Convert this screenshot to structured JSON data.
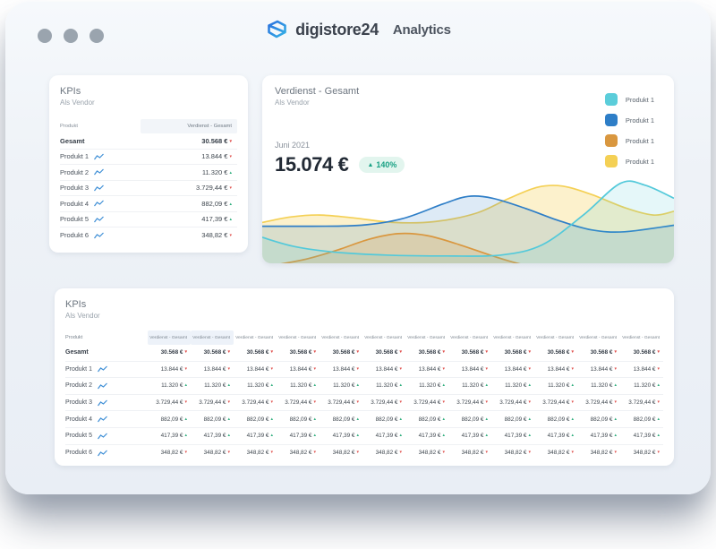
{
  "window": {
    "brand": "digistore24",
    "app": "Analytics",
    "controls": [
      "window-dot",
      "window-dot",
      "window-dot"
    ]
  },
  "kpi_panel": {
    "title": "KPIs",
    "subtitle": "Als Vendor",
    "col_product": "Produkt",
    "col_value": "Verdienst - Gesamt"
  },
  "kpi_rows": [
    {
      "name": "Gesamt",
      "value": "30.568 €",
      "trend": "down",
      "bold": true,
      "spark": false
    },
    {
      "name": "Produkt 1",
      "value": "13.844 €",
      "trend": "down",
      "bold": false,
      "spark": true
    },
    {
      "name": "Produkt 2",
      "value": "11.320 €",
      "trend": "up",
      "bold": false,
      "spark": true
    },
    {
      "name": "Produkt 3",
      "value": "3.729,44 €",
      "trend": "down",
      "bold": false,
      "spark": true
    },
    {
      "name": "Produkt 4",
      "value": "882,09 €",
      "trend": "up",
      "bold": false,
      "spark": true
    },
    {
      "name": "Produkt 5",
      "value": "417,39 €",
      "trend": "up",
      "bold": false,
      "spark": true
    },
    {
      "name": "Produkt 6",
      "value": "348,82 €",
      "trend": "down",
      "bold": false,
      "spark": true
    }
  ],
  "detail_panel": {
    "title": "Verdienst - Gesamt",
    "subtitle": "Als Vendor",
    "period": "Juni 2021",
    "amount": "15.074 €",
    "change": "140%",
    "change_direction": "up",
    "badge_color": "#19a184",
    "legend": [
      {
        "label": "Produkt 1",
        "color": "#5bcdda"
      },
      {
        "label": "Produkt 1",
        "color": "#2e7ec7"
      },
      {
        "label": "Produkt 1",
        "color": "#d9973f"
      },
      {
        "label": "Produkt 1",
        "color": "#f4d055"
      }
    ]
  },
  "chart_data": {
    "type": "area",
    "title": "Verdienst - Gesamt",
    "axes_visible": false,
    "grid": false,
    "legend_position": "top-right",
    "note_units": "relative earnings over time, x 0-100 = Zeitachse, y 0-100 = Höhe",
    "series": [
      {
        "name": "Produkt 1",
        "color": "#f4d055",
        "fill_opacity": 0.3,
        "points": [
          [
            0,
            40
          ],
          [
            7,
            46
          ],
          [
            14,
            48
          ],
          [
            22,
            45
          ],
          [
            32,
            40
          ],
          [
            42,
            41
          ],
          [
            52,
            50
          ],
          [
            60,
            66
          ],
          [
            67,
            78
          ],
          [
            73,
            79
          ],
          [
            80,
            70
          ],
          [
            88,
            56
          ],
          [
            95,
            48
          ],
          [
            100,
            52
          ]
        ]
      },
      {
        "name": "Produkt 1",
        "color": "#2e7ec7",
        "fill_opacity": 0.16,
        "points": [
          [
            0,
            36
          ],
          [
            12,
            36
          ],
          [
            24,
            37
          ],
          [
            34,
            44
          ],
          [
            44,
            60
          ],
          [
            50,
            68
          ],
          [
            56,
            66
          ],
          [
            64,
            55
          ],
          [
            72,
            42
          ],
          [
            80,
            32
          ],
          [
            88,
            30
          ],
          [
            100,
            37
          ]
        ]
      },
      {
        "name": "Produkt 1",
        "color": "#d9973f",
        "fill_opacity": 0.2,
        "points": [
          [
            0,
            -8
          ],
          [
            10,
            0
          ],
          [
            18,
            10
          ],
          [
            26,
            22
          ],
          [
            33,
            28
          ],
          [
            40,
            26
          ],
          [
            48,
            16
          ],
          [
            56,
            4
          ],
          [
            64,
            -6
          ],
          [
            75,
            -14
          ]
        ]
      },
      {
        "name": "Produkt 1",
        "color": "#53c9da",
        "fill_opacity": 0.15,
        "points": [
          [
            0,
            24
          ],
          [
            8,
            14
          ],
          [
            18,
            8
          ],
          [
            30,
            5
          ],
          [
            45,
            4
          ],
          [
            58,
            5
          ],
          [
            68,
            16
          ],
          [
            78,
            48
          ],
          [
            87,
            82
          ],
          [
            93,
            80
          ],
          [
            100,
            66
          ]
        ]
      }
    ]
  },
  "big_panel": {
    "title": "KPIs",
    "subtitle": "Als Vendor",
    "col_product": "Produkt",
    "value_col_label": "Verdienst - Gesamt",
    "value_col_count": 12,
    "highlighted_cols": [
      0,
      1
    ]
  }
}
